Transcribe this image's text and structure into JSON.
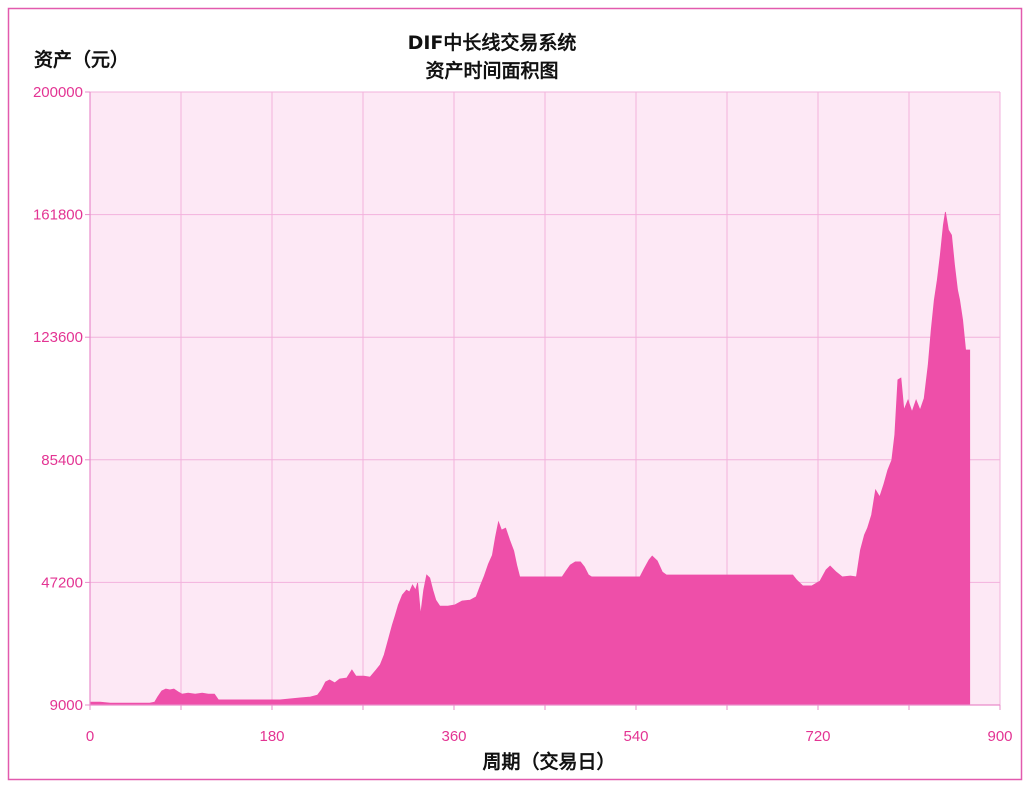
{
  "chart_data": {
    "type": "area",
    "title": "DIF中长线交易系统",
    "subtitle": "资产时间面积图",
    "xlabel": "周期（交易日）",
    "ylabel": "资产（元）",
    "xlim": [
      0,
      900
    ],
    "ylim": [
      9000,
      200000
    ],
    "xticks": [
      0,
      180,
      360,
      540,
      720,
      900
    ],
    "yticks": [
      9000,
      47200,
      85400,
      123600,
      161800,
      200000
    ],
    "grid": true,
    "colors": {
      "area": "#ee4fa9",
      "plot_bg": "#fde8f5",
      "grid": "#f2b2dc",
      "axis": "#e98ccb",
      "tick_text": "#e33493",
      "frame": "#e25aae"
    },
    "series": [
      {
        "x": [
          0,
          10,
          20,
          40,
          59,
          64,
          67,
          71,
          75,
          79,
          83,
          87,
          91,
          97,
          104,
          111,
          117,
          123,
          127,
          148,
          168,
          188,
          198,
          208,
          218,
          225,
          229,
          233,
          237,
          242,
          247,
          254,
          259,
          263,
          271,
          277,
          283,
          287,
          291,
          295,
          299,
          302,
          305,
          309,
          313,
          316,
          319,
          322,
          324,
          327,
          330,
          333,
          336,
          339,
          342,
          346,
          354,
          361,
          368,
          376,
          382,
          386,
          390,
          394,
          398,
          401,
          404,
          407,
          411,
          415,
          419,
          422,
          425,
          445,
          467,
          471,
          475,
          480,
          485,
          489,
          493,
          496,
          544,
          548,
          553,
          556,
          561,
          566,
          570,
          603,
          663,
          695,
          699,
          705,
          714,
          722,
          728,
          732,
          738,
          744,
          752,
          758,
          762,
          766,
          769,
          773,
          777,
          781,
          785,
          789,
          793,
          796,
          799,
          802,
          805,
          809,
          813,
          817,
          821,
          825,
          829,
          832,
          835,
          838,
          841,
          844,
          846,
          849,
          852,
          855,
          858,
          860,
          863,
          866,
          870
        ],
        "y": [
          9900,
          9900,
          9600,
          9600,
          9600,
          9900,
          11500,
          13400,
          14000,
          13700,
          14000,
          13100,
          12400,
          12700,
          12400,
          12700,
          12400,
          12400,
          10600,
          10600,
          10600,
          10600,
          10900,
          11200,
          11500,
          12100,
          13700,
          16200,
          16800,
          15900,
          17100,
          17400,
          19900,
          18000,
          18000,
          17700,
          19900,
          21500,
          24600,
          29300,
          33900,
          37000,
          40200,
          43300,
          44800,
          44200,
          46400,
          44800,
          47000,
          37000,
          44800,
          49500,
          48600,
          44800,
          41700,
          39800,
          39800,
          40200,
          41400,
          41700,
          42700,
          46100,
          49200,
          52900,
          55700,
          61300,
          66000,
          63500,
          64100,
          60400,
          57000,
          52600,
          48900,
          48900,
          48900,
          50800,
          52600,
          53600,
          53600,
          52000,
          49500,
          48900,
          48900,
          51400,
          54200,
          55400,
          53900,
          50400,
          49500,
          49500,
          49500,
          49500,
          47900,
          46100,
          46100,
          47600,
          51100,
          52300,
          50400,
          48900,
          49200,
          48900,
          57300,
          62000,
          64100,
          68200,
          76000,
          73800,
          77600,
          82200,
          85300,
          93100,
          110300,
          110900,
          100900,
          104000,
          100300,
          104000,
          100900,
          104600,
          114900,
          125800,
          135200,
          141400,
          149200,
          158600,
          162600,
          157000,
          155400,
          146100,
          138300,
          135200,
          129000,
          119600,
          119600
        ]
      }
    ]
  }
}
